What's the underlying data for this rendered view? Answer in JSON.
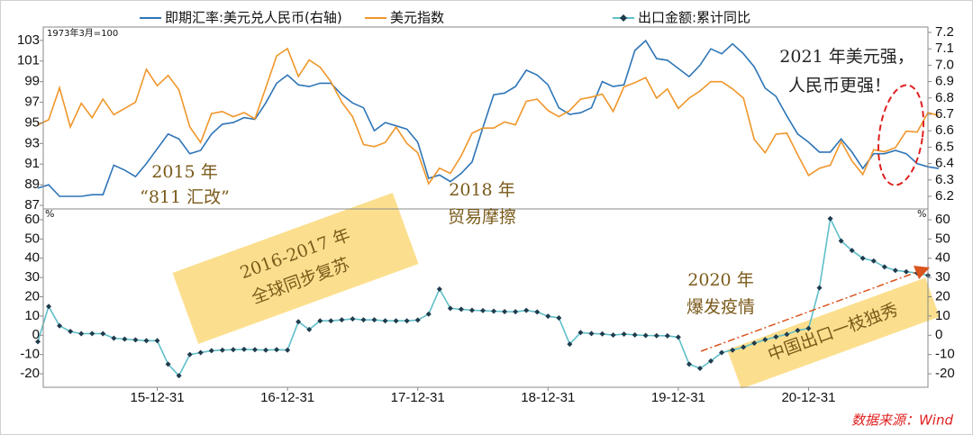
{
  "chart_data": [
    {
      "type": "line",
      "subtitle": "1973年3月=100",
      "categories": [
        "15-01-31",
        "15-02-28",
        "15-03-31",
        "15-04-30",
        "15-05-31",
        "15-06-30",
        "15-07-31",
        "15-08-31",
        "15-09-30",
        "15-10-31",
        "15-11-30",
        "15-12-31",
        "16-01-31",
        "16-02-29",
        "16-03-31",
        "16-04-30",
        "16-05-31",
        "16-06-30",
        "16-07-31",
        "16-08-31",
        "16-09-30",
        "16-10-31",
        "16-11-30",
        "16-12-31",
        "17-01-31",
        "17-02-28",
        "17-03-31",
        "17-04-30",
        "17-05-31",
        "17-06-30",
        "17-07-31",
        "17-08-31",
        "17-09-30",
        "17-10-31",
        "17-11-30",
        "17-12-31",
        "18-01-31",
        "18-02-28",
        "18-03-31",
        "18-04-30",
        "18-05-31",
        "18-06-30",
        "18-07-31",
        "18-08-31",
        "18-09-30",
        "18-10-31",
        "18-11-30",
        "18-12-31",
        "19-01-31",
        "19-02-28",
        "19-03-31",
        "19-04-30",
        "19-05-31",
        "19-06-30",
        "19-07-31",
        "19-08-31",
        "19-09-30",
        "19-10-31",
        "19-11-30",
        "19-12-31",
        "20-01-31",
        "20-02-29",
        "20-03-31",
        "20-04-30",
        "20-05-31",
        "20-06-30",
        "20-07-31",
        "20-08-31",
        "20-09-30",
        "20-10-31",
        "20-11-30",
        "20-12-31",
        "21-01-31",
        "21-02-28",
        "21-03-31",
        "21-04-30",
        "21-05-31",
        "21-06-30",
        "21-07-31",
        "21-08-31",
        "21-09-30",
        "21-10-31",
        "21-11-30",
        "21-12-31"
      ],
      "series": [
        {
          "name": "即期汇率:美元兑人民币(右轴)",
          "color": "#2e75b6",
          "axis": "y2",
          "values": [
            6.25,
            6.27,
            6.2,
            6.2,
            6.2,
            6.21,
            6.21,
            6.39,
            6.36,
            6.32,
            6.4,
            6.49,
            6.58,
            6.55,
            6.46,
            6.48,
            6.58,
            6.64,
            6.65,
            6.68,
            6.67,
            6.77,
            6.89,
            6.94,
            6.88,
            6.87,
            6.89,
            6.89,
            6.82,
            6.77,
            6.74,
            6.6,
            6.65,
            6.63,
            6.61,
            6.53,
            6.31,
            6.33,
            6.29,
            6.34,
            6.41,
            6.62,
            6.82,
            6.83,
            6.87,
            6.97,
            6.94,
            6.88,
            6.74,
            6.7,
            6.71,
            6.74,
            6.9,
            6.87,
            6.88,
            7.09,
            7.15,
            7.04,
            7.03,
            6.98,
            6.93,
            7.0,
            7.1,
            7.07,
            7.13,
            7.07,
            6.99,
            6.86,
            6.81,
            6.69,
            6.58,
            6.53,
            6.47,
            6.47,
            6.55,
            6.47,
            6.37,
            6.46,
            6.46,
            6.48,
            6.46,
            6.4,
            6.38,
            6.37
          ]
        },
        {
          "name": "美元指数",
          "color": "#f0962a",
          "values": [
            94.8,
            95.3,
            98.4,
            94.6,
            96.9,
            95.5,
            97.3,
            95.8,
            96.4,
            97.0,
            100.2,
            98.6,
            99.6,
            98.2,
            94.6,
            93.1,
            95.9,
            96.1,
            95.6,
            96.0,
            95.4,
            98.4,
            101.5,
            102.2,
            99.5,
            101.1,
            100.4,
            99.0,
            97.0,
            95.6,
            92.9,
            92.7,
            93.1,
            94.6,
            93.0,
            92.1,
            89.1,
            90.6,
            90.1,
            91.8,
            94.0,
            94.5,
            94.5,
            95.1,
            94.8,
            97.1,
            97.3,
            96.2,
            95.6,
            96.2,
            97.3,
            97.5,
            97.8,
            96.1,
            98.5,
            98.9,
            99.4,
            97.4,
            98.3,
            96.4,
            97.4,
            98.1,
            99.0,
            99.0,
            98.3,
            97.4,
            93.4,
            92.1,
            93.9,
            94.0,
            91.9,
            89.9,
            90.6,
            90.9,
            93.2,
            91.3,
            90.0,
            92.4,
            92.2,
            92.6,
            94.2,
            94.1,
            96.0,
            95.7
          ]
        }
      ],
      "ylim": [
        86.65,
        104.3
      ],
      "yticks": [
        87,
        89,
        91,
        93,
        95,
        97,
        99,
        101,
        103
      ],
      "y2lim": [
        6.123,
        7.233
      ],
      "y2ticks": [
        6.2,
        6.3,
        6.4,
        6.5,
        6.6,
        6.7,
        6.8,
        6.9,
        {
          "value": 7,
          "label": "7.0"
        },
        7.1,
        7.2
      ]
    },
    {
      "type": "line",
      "categories": [
        "15-01-31",
        "15-02-28",
        "15-03-31",
        "15-04-30",
        "15-05-31",
        "15-06-30",
        "15-07-31",
        "15-08-31",
        "15-09-30",
        "15-10-31",
        "15-11-30",
        "15-12-31",
        "16-01-31",
        "16-02-29",
        "16-03-31",
        "16-04-30",
        "16-05-31",
        "16-06-30",
        "16-07-31",
        "16-08-31",
        "16-09-30",
        "16-10-31",
        "16-11-30",
        "16-12-31",
        "17-01-31",
        "17-02-28",
        "17-03-31",
        "17-04-30",
        "17-05-31",
        "17-06-30",
        "17-07-31",
        "17-08-31",
        "17-09-30",
        "17-10-31",
        "17-11-30",
        "17-12-31",
        "18-01-31",
        "18-02-28",
        "18-03-31",
        "18-04-30",
        "18-05-31",
        "18-06-30",
        "18-07-31",
        "18-08-31",
        "18-09-30",
        "18-10-31",
        "18-11-30",
        "18-12-31",
        "19-01-31",
        "19-02-28",
        "19-03-31",
        "19-04-30",
        "19-05-31",
        "19-06-30",
        "19-07-31",
        "19-08-31",
        "19-09-30",
        "19-10-31",
        "19-11-30",
        "19-12-31",
        "20-01-31",
        "20-02-29",
        "20-03-31",
        "20-04-30",
        "20-05-31",
        "20-06-30",
        "20-07-31",
        "20-08-31",
        "20-09-30",
        "20-10-31",
        "20-11-30",
        "20-12-31",
        "21-01-31",
        "21-02-28",
        "21-03-31",
        "21-04-30",
        "21-05-31",
        "21-06-30",
        "21-07-31",
        "21-08-31",
        "21-09-30",
        "21-10-31",
        "21-11-30",
        "21-12-31"
      ],
      "series": [
        {
          "name": "出口金额:累计同比",
          "color": "#5fbfc9",
          "marker_color": "#1f3b4d",
          "values": [
            -3.3,
            15,
            4.9,
            2,
            0.8,
            0.9,
            0.8,
            -1.5,
            -2,
            -2.4,
            -2.8,
            -2.8,
            -15,
            -21,
            -10,
            -9,
            -8,
            -7.7,
            -7.5,
            -7.3,
            -7.5,
            -7.7,
            -7.5,
            -7.7,
            7,
            3,
            7.5,
            7.5,
            8,
            8.5,
            8,
            8,
            7.5,
            7.5,
            7.5,
            7.9,
            11,
            24,
            14,
            13.5,
            13,
            12.8,
            12.5,
            12.3,
            12.2,
            12.9,
            12.1,
            9.9,
            9,
            -4.6,
            1.4,
            0.9,
            0.7,
            0.1,
            0.6,
            0.2,
            -0.1,
            -0.2,
            -0.3,
            -1,
            -15,
            -17.2,
            -13.4,
            -9,
            -7.7,
            -6.2,
            -4.1,
            -2.3,
            -0.8,
            0.5,
            2.5,
            3.6,
            24.6,
            60.6,
            49,
            44,
            40,
            38.6,
            35.5,
            33.7,
            33,
            32.3,
            31.1,
            null
          ]
        }
      ],
      "ylim": [
        -27,
        65.6
      ],
      "yticks": [
        -20,
        -10,
        0,
        10,
        20,
        30,
        40,
        50,
        60
      ],
      "ylabel": "%",
      "y2ticks": [
        -20,
        -10,
        0,
        10,
        20,
        30,
        40,
        50,
        60
      ],
      "y2label": "%",
      "xticks": [
        "15-12-31",
        "16-12-31",
        "17-12-31",
        "18-12-31",
        "19-12-31",
        "20-12-31"
      ]
    }
  ],
  "annotations": [
    "2015 年",
    "“811 汇改”",
    "2018 年",
    "贸易摩擦",
    "2016-2017 年",
    "全球同步复苏",
    "2020 年",
    "爆发疫情",
    "中国出口一枝独秀",
    "2021 年美元强，",
    "人民币更强！"
  ],
  "source": "数据来源：Wind"
}
